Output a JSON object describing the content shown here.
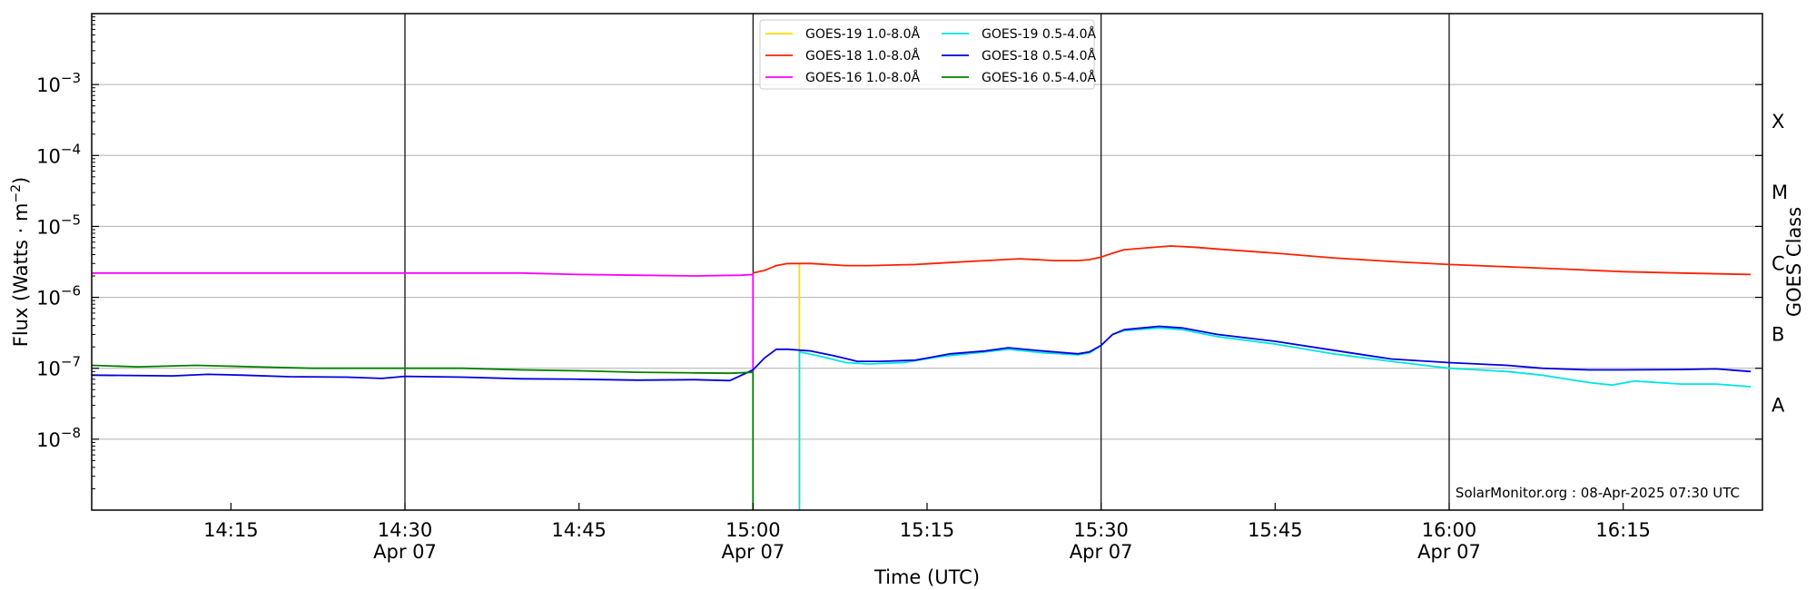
{
  "chart_data": {
    "type": "line",
    "title": "",
    "xlabel": "Time (UTC)",
    "ylabel": "Flux (Watts · m",
    "ylabel_sup": "−2",
    "ylabel_close": ")",
    "y2label": "GOES Class",
    "yscale": "log",
    "xlim": [
      "14:03",
      "16:27"
    ],
    "ylim": [
      1e-09,
      0.01
    ],
    "grid": "horizontal",
    "legend_placement": "top-center",
    "credit": "SolarMonitor.org : 08-Apr-2025 07:30 UTC",
    "x_ticks": [
      {
        "time": "14:15",
        "label": "14:15",
        "date": ""
      },
      {
        "time": "14:30",
        "label": "14:30",
        "date": "Apr 07"
      },
      {
        "time": "14:45",
        "label": "14:45",
        "date": ""
      },
      {
        "time": "15:00",
        "label": "15:00",
        "date": "Apr 07"
      },
      {
        "time": "15:15",
        "label": "15:15",
        "date": ""
      },
      {
        "time": "15:30",
        "label": "15:30",
        "date": "Apr 07"
      },
      {
        "time": "15:45",
        "label": "15:45",
        "date": ""
      },
      {
        "time": "16:00",
        "label": "16:00",
        "date": "Apr 07"
      },
      {
        "time": "16:15",
        "label": "16:15",
        "date": ""
      }
    ],
    "y_ticks": [
      {
        "value": 1e-08,
        "base": "10",
        "exp": "−8"
      },
      {
        "value": 1e-07,
        "base": "10",
        "exp": "−7"
      },
      {
        "value": 1e-06,
        "base": "10",
        "exp": "−6"
      },
      {
        "value": 1e-05,
        "base": "10",
        "exp": "−5"
      },
      {
        "value": 0.0001,
        "base": "10",
        "exp": "−4"
      },
      {
        "value": 0.001,
        "base": "10",
        "exp": "−3"
      }
    ],
    "classes": [
      {
        "label": "A",
        "value": 3e-08
      },
      {
        "label": "B",
        "value": 3e-07
      },
      {
        "label": "C",
        "value": 3e-06
      },
      {
        "label": "M",
        "value": 3e-05
      },
      {
        "label": "X",
        "value": 0.0003
      }
    ],
    "vlines": [
      "14:30",
      "15:00",
      "15:30",
      "16:00"
    ],
    "series": [
      {
        "name": "GOES-19 1.0-8.0Å",
        "color": "#ffd700",
        "points": [
          [
            "15:04",
            1e-09
          ],
          [
            "15:04",
            3e-06
          ]
        ]
      },
      {
        "name": "GOES-18 1.0-8.0Å",
        "color": "#ff2000",
        "points": [
          [
            "15:00",
            2.2e-06
          ],
          [
            "15:01",
            2.4e-06
          ],
          [
            "15:02",
            2.8e-06
          ],
          [
            "15:03",
            3e-06
          ],
          [
            "15:05",
            3e-06
          ],
          [
            "15:08",
            2.8e-06
          ],
          [
            "15:10",
            2.8e-06
          ],
          [
            "15:14",
            2.9e-06
          ],
          [
            "15:17",
            3.1e-06
          ],
          [
            "15:20",
            3.3e-06
          ],
          [
            "15:23",
            3.5e-06
          ],
          [
            "15:26",
            3.3e-06
          ],
          [
            "15:28",
            3.3e-06
          ],
          [
            "15:29",
            3.4e-06
          ],
          [
            "15:30",
            3.7e-06
          ],
          [
            "15:31",
            4.2e-06
          ],
          [
            "15:32",
            4.7e-06
          ],
          [
            "15:34",
            5e-06
          ],
          [
            "15:36",
            5.3e-06
          ],
          [
            "15:38",
            5.1e-06
          ],
          [
            "15:40",
            4.8e-06
          ],
          [
            "15:45",
            4.2e-06
          ],
          [
            "15:50",
            3.6e-06
          ],
          [
            "15:55",
            3.2e-06
          ],
          [
            "16:00",
            2.9e-06
          ],
          [
            "16:05",
            2.7e-06
          ],
          [
            "16:10",
            2.5e-06
          ],
          [
            "16:15",
            2.3e-06
          ],
          [
            "16:20",
            2.2e-06
          ],
          [
            "16:26",
            2.1e-06
          ]
        ]
      },
      {
        "name": "GOES-16 1.0-8.0Å",
        "color": "#ff00ff",
        "points": [
          [
            "14:03",
            2.2e-06
          ],
          [
            "14:15",
            2.2e-06
          ],
          [
            "14:30",
            2.2e-06
          ],
          [
            "14:40",
            2.2e-06
          ],
          [
            "14:45",
            2.1e-06
          ],
          [
            "14:50",
            2.05e-06
          ],
          [
            "14:55",
            2e-06
          ],
          [
            "14:59",
            2.05e-06
          ],
          [
            "15:00",
            2.1e-06
          ],
          [
            "15:00",
            9e-08
          ]
        ]
      },
      {
        "name": "GOES-19 0.5-4.0Å",
        "color": "#00e5e5",
        "points": [
          [
            "15:04",
            1e-09
          ],
          [
            "15:04",
            1.7e-07
          ],
          [
            "15:06",
            1.45e-07
          ],
          [
            "15:08",
            1.2e-07
          ],
          [
            "15:10",
            1.15e-07
          ],
          [
            "15:13",
            1.2e-07
          ],
          [
            "15:16",
            1.45e-07
          ],
          [
            "15:20",
            1.7e-07
          ],
          [
            "15:22",
            1.85e-07
          ],
          [
            "15:25",
            1.65e-07
          ],
          [
            "15:28",
            1.55e-07
          ],
          [
            "15:29",
            1.65e-07
          ],
          [
            "15:30",
            2.1e-07
          ],
          [
            "15:31",
            3e-07
          ],
          [
            "15:32",
            3.4e-07
          ],
          [
            "15:35",
            3.7e-07
          ],
          [
            "15:37",
            3.5e-07
          ],
          [
            "15:40",
            2.8e-07
          ],
          [
            "15:45",
            2.2e-07
          ],
          [
            "15:50",
            1.6e-07
          ],
          [
            "15:55",
            1.25e-07
          ],
          [
            "16:00",
            1e-07
          ],
          [
            "16:05",
            9e-08
          ],
          [
            "16:08",
            8e-08
          ],
          [
            "16:12",
            6.3e-08
          ],
          [
            "16:14",
            5.8e-08
          ],
          [
            "16:16",
            6.6e-08
          ],
          [
            "16:20",
            6e-08
          ],
          [
            "16:23",
            6e-08
          ],
          [
            "16:26",
            5.5e-08
          ]
        ]
      },
      {
        "name": "GOES-18 0.5-4.0Å",
        "color": "#0000e0",
        "points": [
          [
            "14:03",
            8e-08
          ],
          [
            "14:10",
            7.8e-08
          ],
          [
            "14:13",
            8.2e-08
          ],
          [
            "14:16",
            8e-08
          ],
          [
            "14:20",
            7.6e-08
          ],
          [
            "14:25",
            7.5e-08
          ],
          [
            "14:28",
            7.2e-08
          ],
          [
            "14:30",
            7.7e-08
          ],
          [
            "14:35",
            7.5e-08
          ],
          [
            "14:40",
            7.1e-08
          ],
          [
            "14:45",
            7e-08
          ],
          [
            "14:50",
            6.8e-08
          ],
          [
            "14:55",
            6.9e-08
          ],
          [
            "14:58",
            6.7e-08
          ],
          [
            "15:00",
            9.5e-08
          ],
          [
            "15:01",
            1.4e-07
          ],
          [
            "15:02",
            1.85e-07
          ],
          [
            "15:03",
            1.85e-07
          ],
          [
            "15:05",
            1.75e-07
          ],
          [
            "15:07",
            1.5e-07
          ],
          [
            "15:09",
            1.25e-07
          ],
          [
            "15:11",
            1.25e-07
          ],
          [
            "15:14",
            1.3e-07
          ],
          [
            "15:17",
            1.6e-07
          ],
          [
            "15:20",
            1.75e-07
          ],
          [
            "15:22",
            1.95e-07
          ],
          [
            "15:25",
            1.75e-07
          ],
          [
            "15:28",
            1.6e-07
          ],
          [
            "15:29",
            1.7e-07
          ],
          [
            "15:30",
            2.1e-07
          ],
          [
            "15:31",
            3e-07
          ],
          [
            "15:32",
            3.5e-07
          ],
          [
            "15:35",
            3.9e-07
          ],
          [
            "15:37",
            3.7e-07
          ],
          [
            "15:40",
            3e-07
          ],
          [
            "15:45",
            2.4e-07
          ],
          [
            "15:50",
            1.8e-07
          ],
          [
            "15:55",
            1.35e-07
          ],
          [
            "16:00",
            1.2e-07
          ],
          [
            "16:05",
            1.1e-07
          ],
          [
            "16:08",
            1e-07
          ],
          [
            "16:12",
            9.5e-08
          ],
          [
            "16:15",
            9.5e-08
          ],
          [
            "16:20",
            9.6e-08
          ],
          [
            "16:23",
            9.8e-08
          ],
          [
            "16:26",
            9e-08
          ]
        ]
      },
      {
        "name": "GOES-16 0.5-4.0Å",
        "color": "#008000",
        "points": [
          [
            "14:03",
            1.1e-07
          ],
          [
            "14:07",
            1.05e-07
          ],
          [
            "14:12",
            1.1e-07
          ],
          [
            "14:17",
            1.05e-07
          ],
          [
            "14:22",
            1e-07
          ],
          [
            "14:30",
            1e-07
          ],
          [
            "14:35",
            1e-07
          ],
          [
            "14:40",
            9.5e-08
          ],
          [
            "14:45",
            9.2e-08
          ],
          [
            "14:50",
            8.8e-08
          ],
          [
            "14:55",
            8.6e-08
          ],
          [
            "14:58",
            8.5e-08
          ],
          [
            "15:00",
            8.8e-08
          ],
          [
            "15:00",
            1e-09
          ]
        ]
      }
    ]
  }
}
